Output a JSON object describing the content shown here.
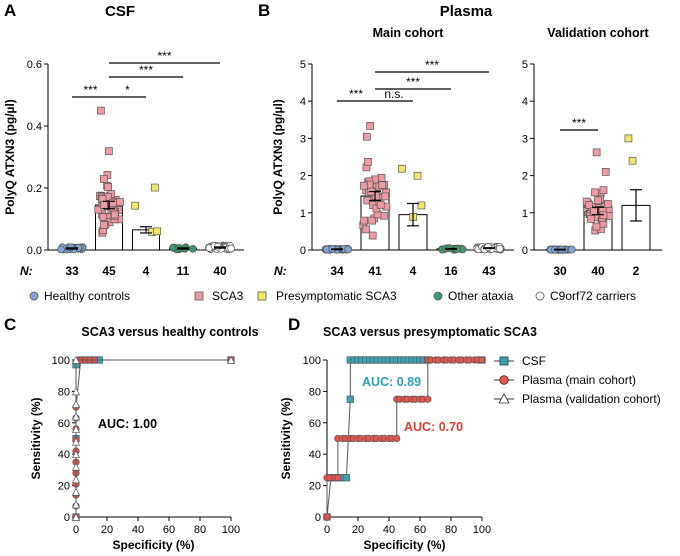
{
  "panel_labels": {
    "a": "A",
    "b": "B",
    "c": "C",
    "d": "D"
  },
  "titles": {
    "a": "CSF",
    "b": "Plasma",
    "b_main": "Main cohort",
    "b_val": "Validation cohort",
    "c": "SCA3 versus healthy controls",
    "d": "SCA3 versus presymptomatic SCA3"
  },
  "n_prefix": "N:",
  "legend_groups": [
    "Healthy controls",
    "SCA3",
    "Presymptomatic SCA3",
    "Other ataxia",
    "C9orf72 carriers"
  ],
  "legend_roc": [
    "CSF",
    "Plasma (main cohort)",
    "Plasma (validation cohort)"
  ],
  "annotations": {
    "auc_c": "AUC: 1.00",
    "auc_d_csf": "AUC: 0.89",
    "auc_d_plasma": "AUC: 0.70"
  },
  "colors": {
    "healthy": "#7ea6d9",
    "sca3": "#ef9aa3",
    "presymptomatic": "#f2e66a",
    "other_ataxia": "#3f9a6b",
    "c9orf72": "#ffffff",
    "csf_roc": "#3aa3b6",
    "plasma_main_roc": "#e8534d",
    "plasma_val_roc": "#ffffff",
    "auc_csf_text": "#2a9fb5",
    "auc_plasma_text": "#e53935"
  },
  "chart_data": [
    {
      "id": "a",
      "type": "bar",
      "title": "CSF",
      "ylabel": "PolyQ ATXN3 (pg/µl)",
      "ylim": [
        0,
        0.6
      ],
      "yticks": [
        "0.0",
        "0.2",
        "0.4",
        "0.6"
      ],
      "categories": [
        "Healthy controls",
        "SCA3",
        "Presymptomatic SCA3",
        "Other ataxia",
        "C9orf72 carriers"
      ],
      "means": [
        0.005,
        0.145,
        0.065,
        0.005,
        0.008
      ],
      "errors": [
        0.002,
        0.012,
        0.01,
        0.002,
        0.002
      ],
      "n": [
        "33",
        "45",
        "4",
        "11",
        "40"
      ],
      "significance": [
        {
          "from": 0,
          "to": 1,
          "label": "***"
        },
        {
          "from": 1,
          "to": 2,
          "label": "*"
        },
        {
          "from": 1,
          "to": 3,
          "label": "***"
        },
        {
          "from": 1,
          "to": 4,
          "label": "***"
        }
      ]
    },
    {
      "id": "b_main",
      "type": "bar",
      "title": "Main cohort",
      "ylabel": "PolyQ ATXN3 (pg/µl)",
      "ylim": [
        0,
        5
      ],
      "yticks": [
        "0",
        "1",
        "2",
        "3",
        "4",
        "5"
      ],
      "categories": [
        "Healthy controls",
        "SCA3",
        "Presymptomatic SCA3",
        "Other ataxia",
        "C9orf72 carriers"
      ],
      "means": [
        0.02,
        1.45,
        0.95,
        0.03,
        0.05
      ],
      "errors": [
        0.01,
        0.12,
        0.3,
        0.01,
        0.01
      ],
      "n": [
        "34",
        "41",
        "4",
        "16",
        "43"
      ],
      "significance": [
        {
          "from": 0,
          "to": 1,
          "label": "***"
        },
        {
          "from": 1,
          "to": 2,
          "label": "n.s."
        },
        {
          "from": 1,
          "to": 3,
          "label": "***"
        },
        {
          "from": 1,
          "to": 4,
          "label": "***"
        }
      ]
    },
    {
      "id": "b_val",
      "type": "bar",
      "title": "Validation cohort",
      "ylim": [
        0,
        5
      ],
      "yticks": [
        "0",
        "1",
        "2",
        "3",
        "4",
        "5"
      ],
      "categories": [
        "Healthy controls",
        "SCA3",
        "Presymptomatic SCA3"
      ],
      "means": [
        0.01,
        1.05,
        1.2
      ],
      "errors": [
        0.01,
        0.1,
        0.42
      ],
      "n": [
        "30",
        "40",
        "2"
      ],
      "significance": [
        {
          "from": 0,
          "to": 1,
          "label": "***"
        }
      ]
    },
    {
      "id": "c",
      "type": "line",
      "title": "SCA3 versus healthy controls",
      "xlabel": "Specificity (%)",
      "ylabel": "Sensitivity (%)",
      "xlim": [
        0,
        100
      ],
      "ylim": [
        0,
        100
      ],
      "ticks": [
        "0",
        "20",
        "40",
        "60",
        "80",
        "100"
      ],
      "series": [
        {
          "name": "CSF",
          "x": [
            0,
            0,
            0,
            3,
            6,
            9,
            12,
            15,
            100
          ],
          "y": [
            0,
            50,
            97,
            100,
            100,
            100,
            100,
            100,
            100
          ]
        },
        {
          "name": "Plasma (main cohort)",
          "x": [
            0,
            0,
            0,
            0,
            0,
            0,
            0,
            0,
            0,
            0,
            0,
            3,
            6,
            9,
            12,
            100
          ],
          "y": [
            0,
            7,
            14,
            21,
            28,
            35,
            42,
            49,
            56,
            63,
            70,
            100,
            100,
            100,
            100,
            100
          ]
        },
        {
          "name": "Plasma (validation cohort)",
          "x": [
            0,
            0,
            0,
            0,
            0,
            0,
            0,
            0,
            0,
            0,
            0,
            0,
            100
          ],
          "y": [
            0,
            8,
            16,
            24,
            32,
            40,
            48,
            56,
            64,
            72,
            80,
            100,
            100
          ]
        }
      ],
      "annotation": "AUC: 1.00"
    },
    {
      "id": "d",
      "type": "line",
      "title": "SCA3 versus presymptomatic SCA3",
      "xlabel": "Specificity (%)",
      "ylabel": "Sensitivity (%)",
      "xlim": [
        0,
        100
      ],
      "ylim": [
        0,
        100
      ],
      "ticks": [
        "0",
        "20",
        "40",
        "60",
        "80",
        "100"
      ],
      "series": [
        {
          "name": "CSF",
          "x": [
            0,
            2.5,
            5,
            7.5,
            10,
            12.5,
            15,
            15,
            17.5,
            20,
            22.5,
            25,
            27.5,
            30,
            32.5,
            35,
            37.5,
            40,
            42.5,
            45,
            47.5,
            50,
            52.5,
            55,
            57.5,
            60,
            62.5,
            65,
            100
          ],
          "y": [
            0,
            25,
            25,
            25,
            25,
            25,
            75,
            100,
            100,
            100,
            100,
            100,
            100,
            100,
            100,
            100,
            100,
            100,
            100,
            100,
            100,
            100,
            100,
            100,
            100,
            100,
            100,
            100,
            100
          ]
        },
        {
          "name": "Plasma (main cohort)",
          "x": [
            0,
            0,
            2,
            5,
            7,
            7,
            10,
            12,
            15,
            17,
            20,
            22,
            25,
            27,
            30,
            32,
            35,
            37,
            40,
            42,
            45,
            45,
            47,
            50,
            52,
            55,
            57,
            60,
            62,
            65,
            65,
            67,
            70,
            72,
            75,
            77,
            80,
            82,
            85,
            87,
            90,
            92,
            95,
            97,
            100
          ],
          "y": [
            0,
            25,
            25,
            25,
            25,
            50,
            50,
            50,
            50,
            50,
            50,
            50,
            50,
            50,
            50,
            50,
            50,
            50,
            50,
            50,
            50,
            75,
            75,
            75,
            75,
            75,
            75,
            75,
            75,
            75,
            100,
            100,
            100,
            100,
            100,
            100,
            100,
            100,
            100,
            100,
            100,
            100,
            100,
            100,
            100
          ]
        }
      ],
      "annotations": [
        "AUC: 0.89",
        "AUC: 0.70"
      ]
    }
  ]
}
